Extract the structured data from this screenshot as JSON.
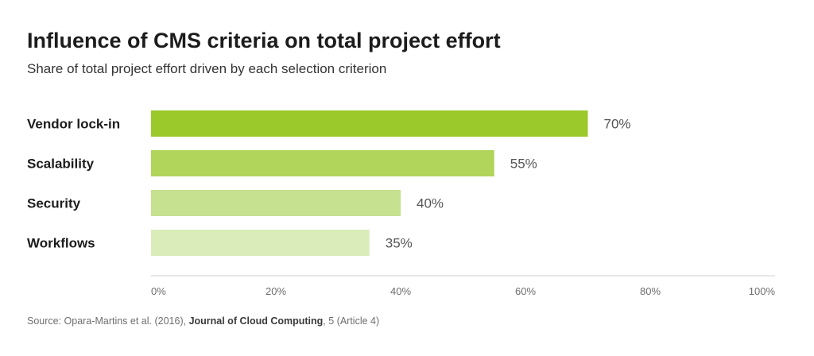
{
  "chart_data": {
    "type": "bar",
    "orientation": "horizontal",
    "title": "Influence of CMS criteria on total project effort",
    "subtitle": "Share of total project effort driven by each selection criterion",
    "categories": [
      "Vendor lock-in",
      "Scalability",
      "Security",
      "Workflows"
    ],
    "values": [
      70,
      55,
      40,
      35
    ],
    "value_labels": [
      "70%",
      "55%",
      "40%",
      "35%"
    ],
    "bar_colors": [
      "#9bc82b",
      "#b0d55a",
      "#c6e18f",
      "#dbecbb"
    ],
    "xlim": [
      0,
      100
    ],
    "x_ticks": [
      0,
      20,
      40,
      60,
      80,
      100
    ],
    "x_tick_labels": [
      "0%",
      "20%",
      "40%",
      "60%",
      "80%",
      "100%"
    ],
    "grid": false,
    "legend": "none"
  },
  "source": {
    "prefix": "Source: Opara-Martins et al. (2016), ",
    "journal": "Journal of Cloud Computing",
    "suffix": ", 5 (Article 4)"
  }
}
